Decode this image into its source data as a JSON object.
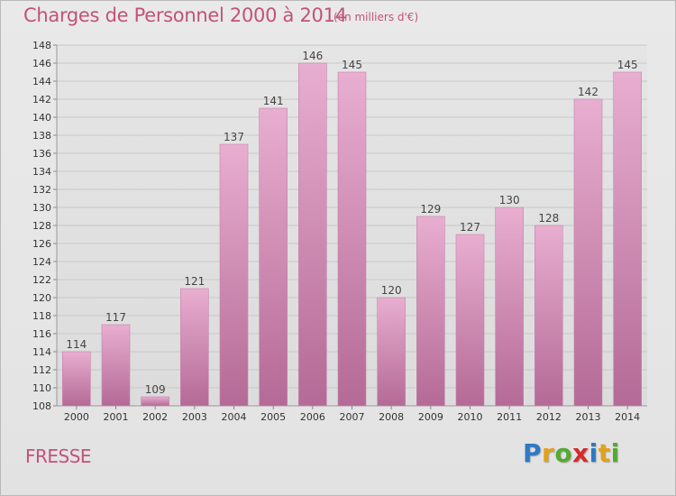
{
  "header": {
    "title": "Charges de Personnel 2000 à 2014",
    "subtitle": "(en milliers d'€)"
  },
  "footer": {
    "commune": "FRESSE",
    "logo": "Proxiti",
    "logo_letters": [
      {
        "ch": "P",
        "color": "#2f79c4"
      },
      {
        "ch": "r",
        "color": "#e0a21d"
      },
      {
        "ch": "o",
        "color": "#56a933"
      },
      {
        "ch": "x",
        "color": "#d62b2b"
      },
      {
        "ch": "i",
        "color": "#2f79c4"
      },
      {
        "ch": "t",
        "color": "#e0a21d"
      },
      {
        "ch": "i",
        "color": "#56a933"
      }
    ]
  },
  "colors": {
    "bar_light": "#e6a9cd",
    "bar_dark": "#b76e99",
    "text_accent": "#c2527b"
  },
  "chart_data": {
    "type": "bar",
    "title": "Charges de Personnel 2000 à 2014",
    "subtitle": "(en milliers d'€)",
    "xlabel": "",
    "ylabel": "",
    "categories": [
      "2000",
      "2001",
      "2002",
      "2003",
      "2004",
      "2005",
      "2006",
      "2007",
      "2008",
      "2009",
      "2010",
      "2011",
      "2012",
      "2013",
      "2014"
    ],
    "values": [
      114,
      117,
      109,
      121,
      137,
      141,
      146,
      145,
      120,
      129,
      127,
      130,
      128,
      142,
      145
    ],
    "ylim": [
      108,
      148
    ],
    "yticks": [
      108,
      110,
      112,
      114,
      116,
      118,
      120,
      122,
      124,
      126,
      128,
      130,
      132,
      134,
      136,
      138,
      140,
      142,
      144,
      146,
      148
    ],
    "grid": true,
    "legend": "none"
  }
}
